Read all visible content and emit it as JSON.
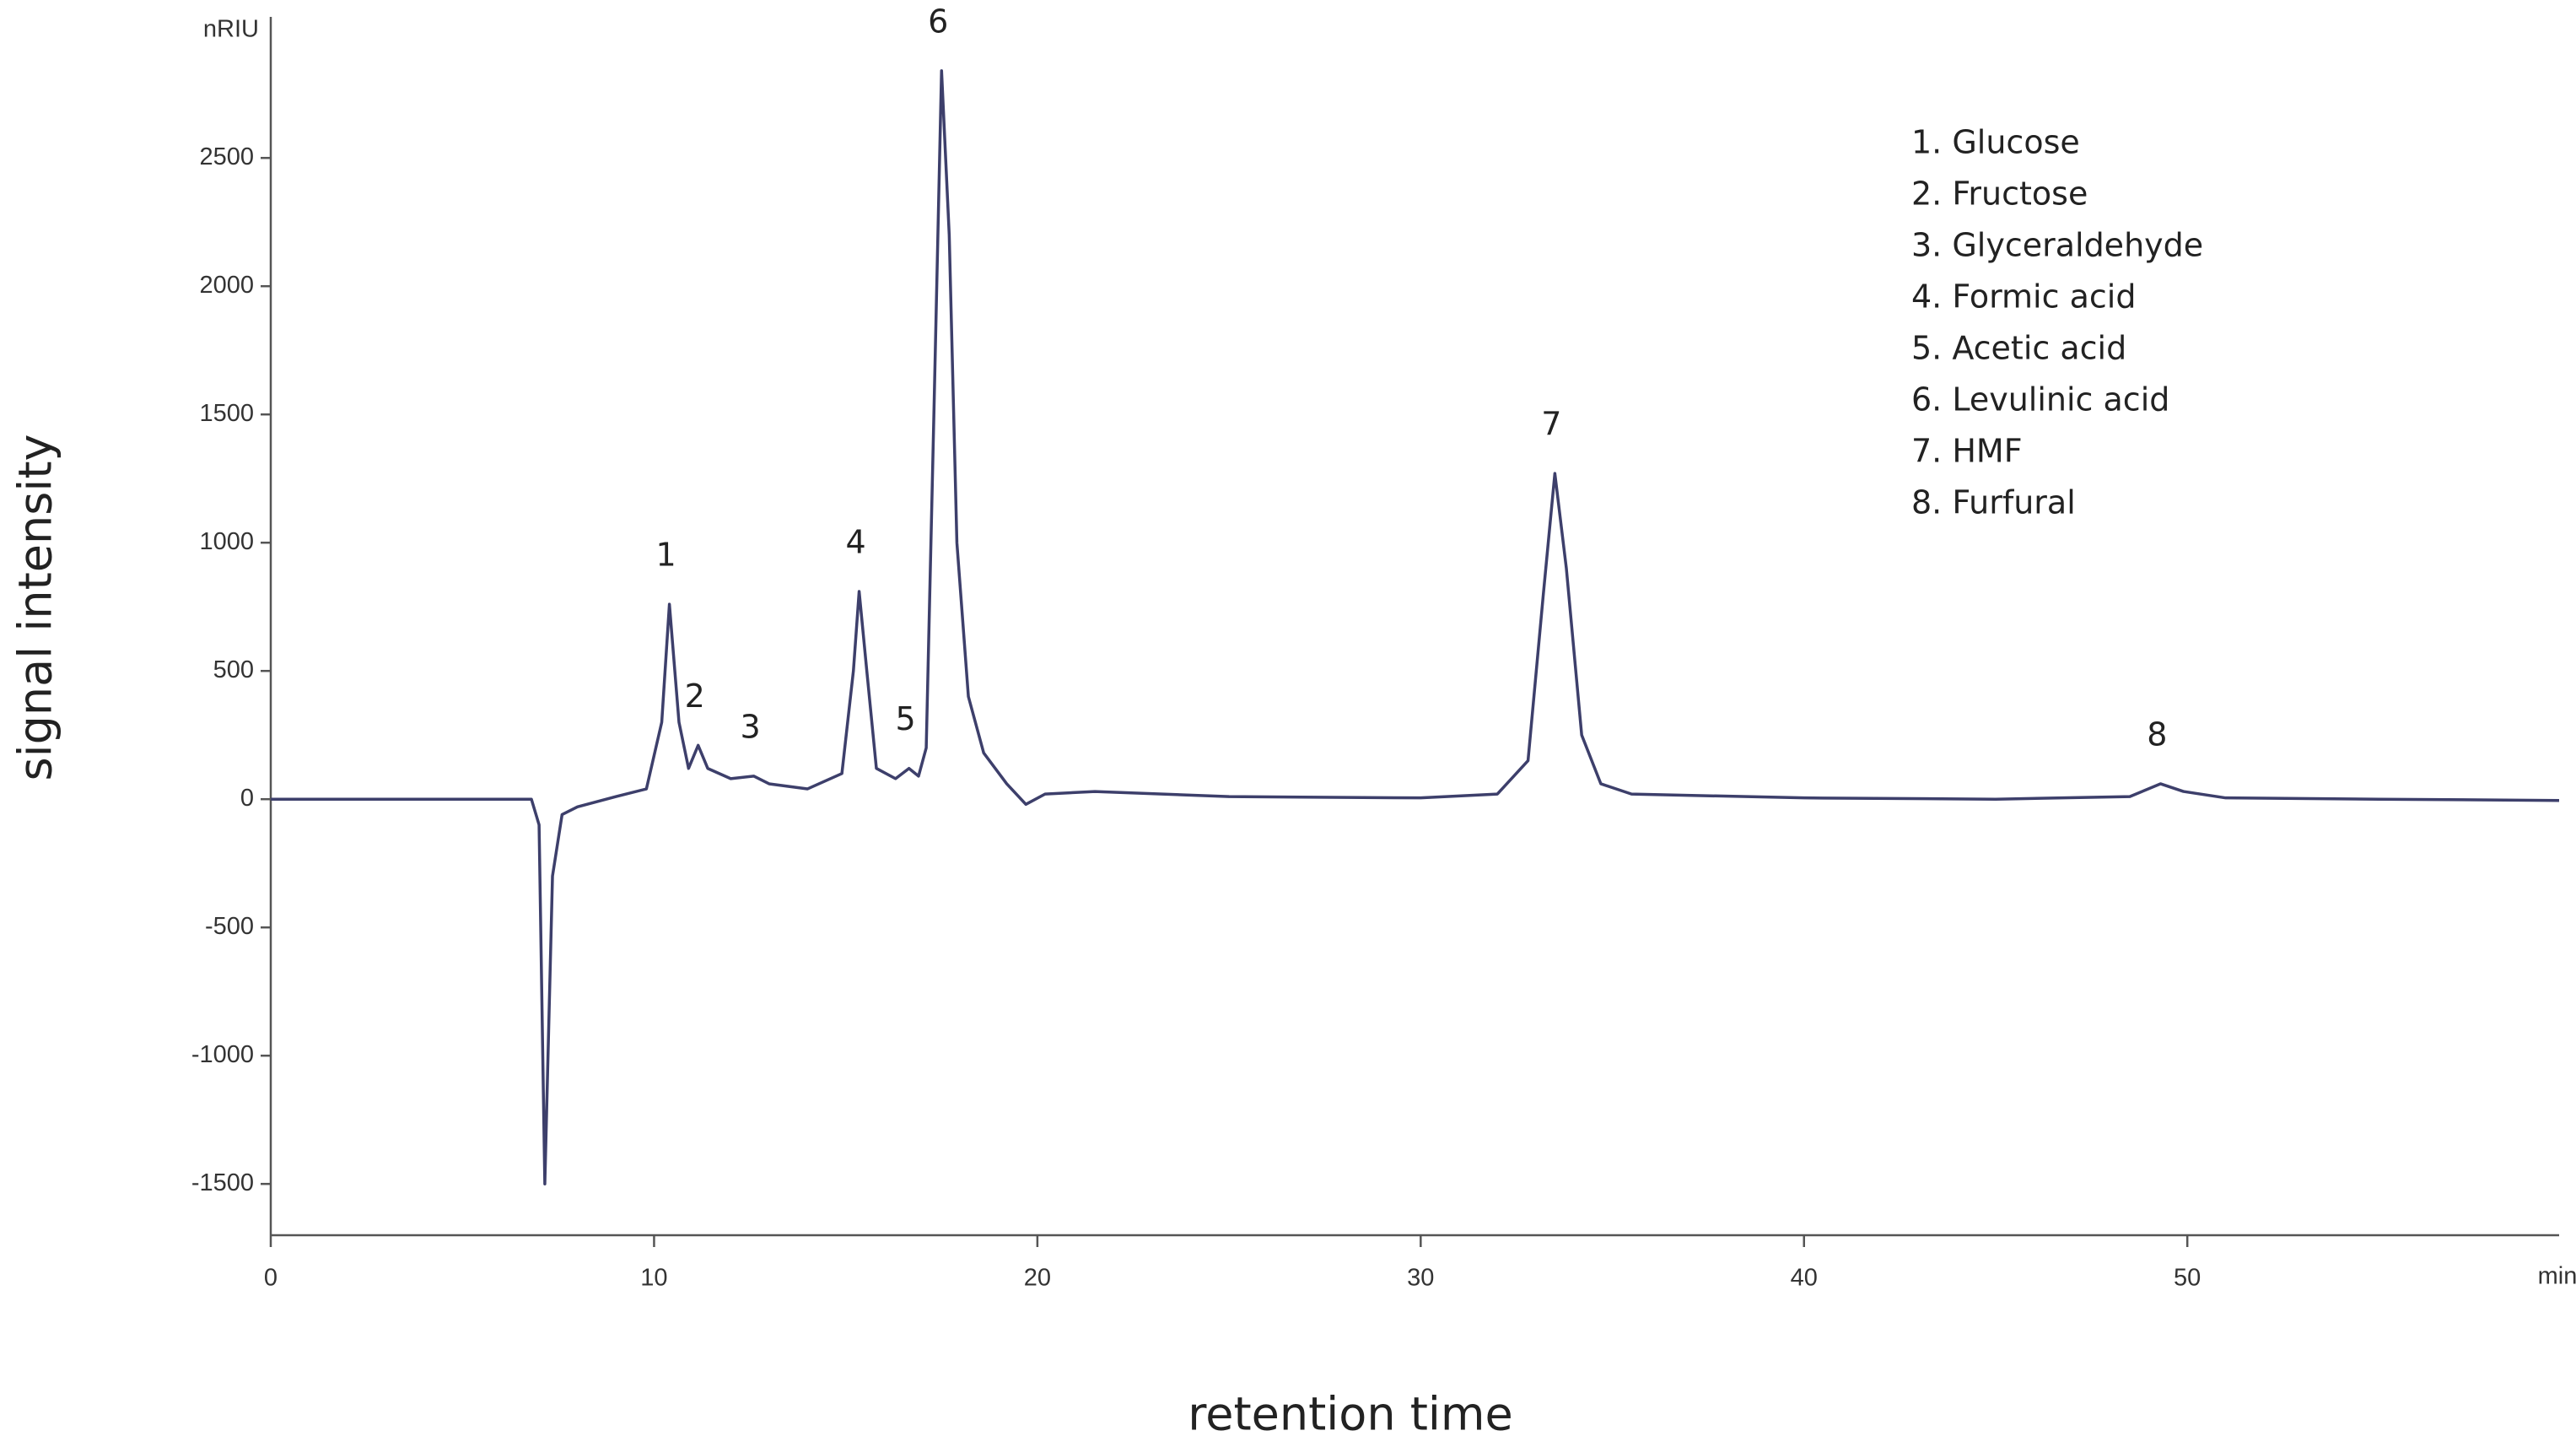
{
  "chart_data": {
    "type": "line",
    "x_label": "retention time",
    "y_label": "signal intensity",
    "x_unit": "min",
    "y_unit": "nRIU",
    "color": "#3d3f6b",
    "xlim": [
      0,
      59.7
    ],
    "ylim": [
      -1700,
      3050
    ],
    "xticks": [
      0,
      10,
      20,
      30,
      40,
      50
    ],
    "yticks": [
      -1500,
      -1000,
      -500,
      0,
      500,
      1000,
      1500,
      2000,
      2500
    ],
    "x": [
      0,
      6.8,
      7.0,
      7.15,
      7.35,
      7.6,
      8,
      9,
      9.8,
      10.2,
      10.4,
      10.65,
      10.9,
      11.15,
      11.4,
      12,
      12.6,
      13,
      14,
      14.9,
      15.2,
      15.35,
      15.55,
      15.8,
      16.3,
      16.65,
      16.9,
      17.1,
      17.3,
      17.5,
      17.7,
      17.9,
      18.2,
      18.6,
      19.2,
      19.7,
      20.2,
      21.5,
      25,
      30,
      32,
      32.8,
      33.2,
      33.5,
      33.8,
      34.2,
      34.7,
      35.5,
      40,
      45,
      48.5,
      49.3,
      49.9,
      51,
      55,
      59.7
    ],
    "values": [
      0,
      0,
      -100,
      -1500,
      -300,
      -60,
      -30,
      10,
      40,
      300,
      760,
      300,
      120,
      210,
      120,
      80,
      90,
      60,
      40,
      100,
      500,
      810,
      500,
      120,
      80,
      120,
      90,
      200,
      1500,
      2840,
      2200,
      1000,
      400,
      180,
      60,
      -20,
      20,
      30,
      10,
      5,
      20,
      150,
      800,
      1270,
      900,
      250,
      60,
      20,
      5,
      0,
      10,
      60,
      30,
      5,
      0,
      -5
    ],
    "peaks": [
      {
        "label": "1",
        "x": 10.4,
        "y": 760
      },
      {
        "label": "2",
        "x": 11.15,
        "y": 210
      },
      {
        "label": "3",
        "x": 12.6,
        "y": 90
      },
      {
        "label": "4",
        "x": 15.35,
        "y": 810
      },
      {
        "label": "5",
        "x": 16.65,
        "y": 120
      },
      {
        "label": "6",
        "x": 17.5,
        "y": 2840
      },
      {
        "label": "7",
        "x": 33.5,
        "y": 1270
      },
      {
        "label": "8",
        "x": 49.3,
        "y": 60
      }
    ],
    "legend": [
      "1. Glucose",
      "2. Fructose",
      "3. Glyceraldehyde",
      "4. Formic acid",
      "5. Acetic acid",
      "6. Levulinic acid",
      "7. HMF",
      "8. Furfural"
    ]
  }
}
